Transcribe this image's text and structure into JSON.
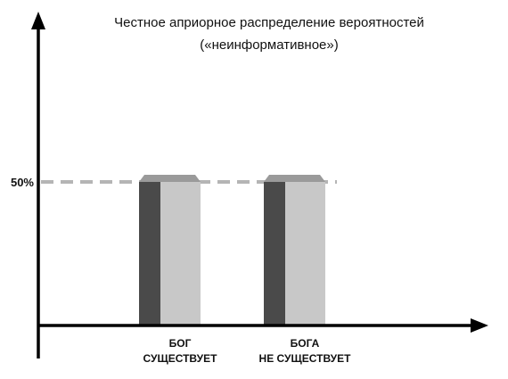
{
  "chart_data": {
    "type": "bar",
    "title_lines": [
      "Честное априорное распределение вероятностей",
      "(«неинформативное»)"
    ],
    "categories": [
      [
        "БОГ",
        "СУЩЕСТВУЕТ"
      ],
      [
        "БОГА",
        "НЕ СУЩЕСТВУЕТ"
      ]
    ],
    "values": [
      50,
      50
    ],
    "reference_line": {
      "value": 50,
      "label": "50%"
    },
    "xlabel": "",
    "ylabel": "",
    "ylim": [
      0,
      100
    ],
    "grid": false,
    "legend": "none",
    "colors": {
      "axis": "#000000",
      "reference_line": "#b5b5b5",
      "bar_front": "#c8c8c8",
      "bar_side": "#4a4a4a",
      "bar_top": "#9a9a9a"
    }
  }
}
